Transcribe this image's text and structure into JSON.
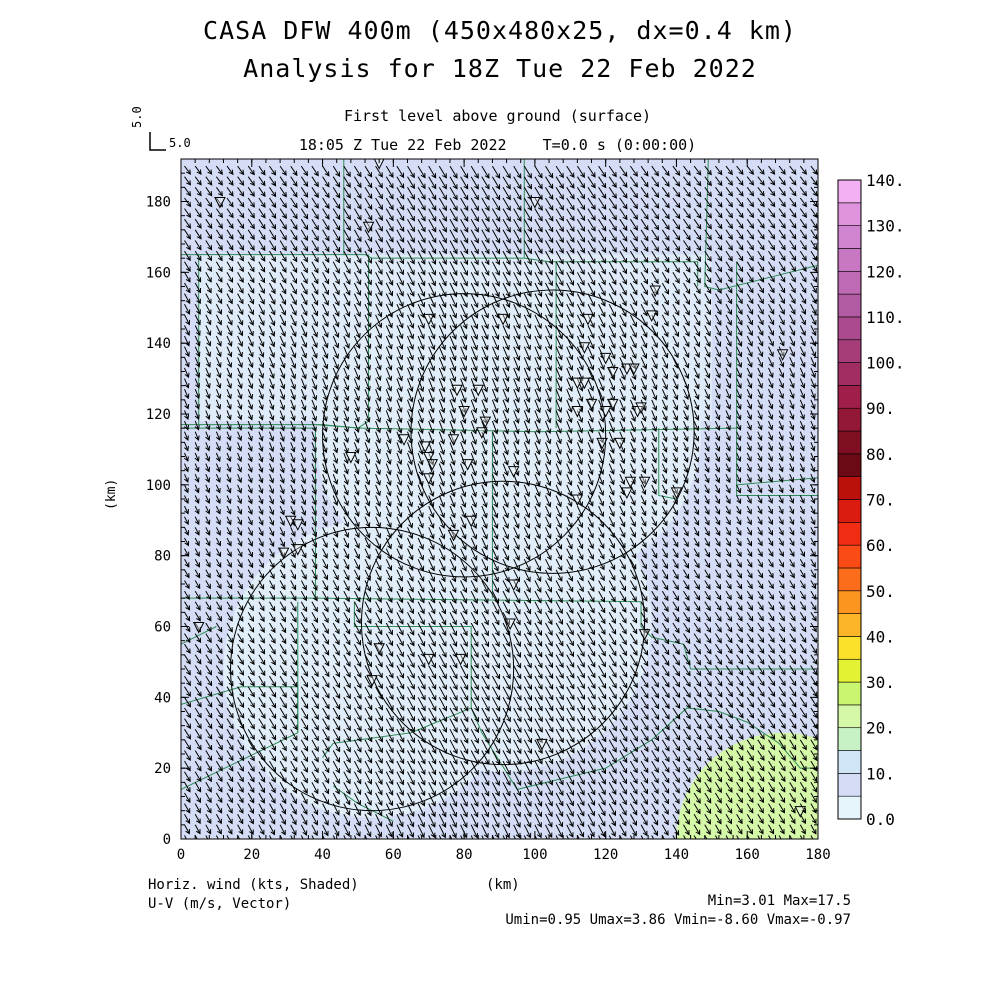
{
  "chart_data": {
    "type": "vector-field",
    "title_line1": "CASA DFW 400m (450x480x25, dx=0.4 km)",
    "title_line2": "Analysis for 18Z Tue 22 Feb 2022",
    "subtitle_line1": "First level above ground (surface)",
    "subtitle_line2": "18:05 Z Tue 22 Feb 2022    T=0.0 s (0:00:00)",
    "xlabel": "(km)",
    "ylabel": "(km)",
    "xlim": [
      0,
      180
    ],
    "ylim": [
      0,
      192
    ],
    "xticks": [
      0,
      20,
      40,
      60,
      80,
      100,
      120,
      140,
      160,
      180
    ],
    "xtick_labels": [
      "0",
      "20",
      "40",
      "60",
      "80",
      "100",
      "120",
      "140",
      "160",
      "180"
    ],
    "yticks": [
      0,
      20,
      40,
      60,
      80,
      100,
      120,
      140,
      160,
      180
    ],
    "ytick_labels": [
      "0",
      "20",
      "40",
      "60",
      "80",
      "100",
      "120",
      "140",
      "160",
      "180"
    ],
    "vector_reference": {
      "u_label": "5.0",
      "v_label": "5.0"
    },
    "colorbar": {
      "levels": [
        0,
        5,
        10,
        15,
        20,
        25,
        30,
        35,
        40,
        45,
        50,
        55,
        60,
        65,
        70,
        75,
        80,
        85,
        90,
        95,
        100,
        105,
        110,
        115,
        120,
        125,
        130,
        135,
        140
      ],
      "tick_labels": [
        "0.0",
        "10.",
        "20.",
        "30.",
        "40.",
        "50.",
        "60.",
        "70.",
        "80.",
        "90.",
        "100.",
        "110.",
        "120.",
        "130.",
        "140."
      ],
      "colors": [
        "#e6f4fb",
        "#d4ddf5",
        "#d0e6f6",
        "#c6f2c6",
        "#d5f7a8",
        "#c9f570",
        "#e3f232",
        "#fbe12a",
        "#fcb526",
        "#fb9420",
        "#fb6d1a",
        "#fa4a15",
        "#f22c12",
        "#dc1b10",
        "#bc100c",
        "#6b0a14",
        "#7e0f23",
        "#931836",
        "#9f1f4a",
        "#a12e63",
        "#a63c7a",
        "#ab4a8e",
        "#b15ba2",
        "#bf6ab5",
        "#c877c3",
        "#d184d0",
        "#de95de",
        "#f3b1f3"
      ]
    },
    "shading": {
      "field": "Horiz. wind (kts)",
      "background_color": "#d4ddf5",
      "light_region_color": "#e6f4fb",
      "green_region_color": "#d5f7a8",
      "green_region": {
        "center": [
          170,
          0
        ],
        "radius": 30
      }
    },
    "vectors": {
      "field": "U-V (m/s)",
      "spacing_km": 3,
      "u_range": [
        0.95,
        3.86
      ],
      "v_range": [
        -8.6,
        -0.97
      ]
    },
    "range_rings": [
      {
        "center": [
          80,
          114
        ],
        "radius": 40
      },
      {
        "center": [
          105,
          115
        ],
        "radius": 40
      },
      {
        "center": [
          54,
          48
        ],
        "radius": 40
      },
      {
        "center": [
          91,
          61
        ],
        "radius": 40
      }
    ],
    "stations": [
      [
        56,
        191
      ],
      [
        53,
        173
      ],
      [
        11,
        180
      ],
      [
        100,
        180
      ],
      [
        134,
        155
      ],
      [
        133,
        148
      ],
      [
        70,
        147
      ],
      [
        91,
        147
      ],
      [
        115,
        147
      ],
      [
        114,
        139
      ],
      [
        120,
        136
      ],
      [
        122,
        132
      ],
      [
        126,
        133
      ],
      [
        128,
        133
      ],
      [
        112,
        129
      ],
      [
        114,
        129
      ],
      [
        116,
        123
      ],
      [
        112,
        121
      ],
      [
        120,
        121
      ],
      [
        122,
        123
      ],
      [
        129,
        121
      ],
      [
        130,
        122
      ],
      [
        170,
        137
      ],
      [
        78,
        127
      ],
      [
        84,
        127
      ],
      [
        80,
        121
      ],
      [
        86,
        118
      ],
      [
        85,
        115
      ],
      [
        77,
        113
      ],
      [
        63,
        113
      ],
      [
        69,
        111
      ],
      [
        70,
        108
      ],
      [
        71,
        106
      ],
      [
        70,
        102
      ],
      [
        81,
        106
      ],
      [
        94,
        104
      ],
      [
        48,
        108
      ],
      [
        119,
        112
      ],
      [
        124,
        112
      ],
      [
        127,
        101
      ],
      [
        131,
        101
      ],
      [
        126,
        98
      ],
      [
        140,
        98
      ],
      [
        112,
        96
      ],
      [
        31,
        90
      ],
      [
        33,
        89
      ],
      [
        29,
        81
      ],
      [
        33,
        82
      ],
      [
        77,
        86
      ],
      [
        82,
        90
      ],
      [
        94,
        72
      ],
      [
        5,
        60
      ],
      [
        93,
        61
      ],
      [
        131,
        58
      ],
      [
        56,
        54
      ],
      [
        70,
        51
      ],
      [
        79,
        51
      ],
      [
        54,
        45
      ],
      [
        102,
        27
      ],
      [
        175,
        8
      ]
    ],
    "boundaries": [
      [
        [
          0,
          165
        ],
        [
          52,
          165
        ],
        [
          54,
          164
        ],
        [
          97,
          164
        ],
        [
          104,
          163
        ],
        [
          146,
          163
        ],
        [
          146,
          156
        ]
      ],
      [
        [
          5,
          165
        ],
        [
          5,
          117
        ]
      ],
      [
        [
          53,
          165
        ],
        [
          53,
          118
        ],
        [
          50,
          116
        ],
        [
          40,
          117
        ],
        [
          0,
          117
        ]
      ],
      [
        [
          0,
          116
        ],
        [
          38,
          116
        ],
        [
          38,
          68
        ],
        [
          0,
          68
        ]
      ],
      [
        [
          38,
          117
        ],
        [
          51,
          116
        ],
        [
          101,
          115
        ],
        [
          157,
          116
        ]
      ],
      [
        [
          38,
          68
        ],
        [
          130,
          67
        ]
      ],
      [
        [
          46,
          192
        ],
        [
          46,
          165
        ]
      ],
      [
        [
          97,
          192
        ],
        [
          97,
          164
        ]
      ],
      [
        [
          106,
          163
        ],
        [
          106,
          116
        ]
      ],
      [
        [
          149,
          192
        ],
        [
          148,
          156
        ],
        [
          152,
          155
        ],
        [
          180,
          162
        ]
      ],
      [
        [
          157,
          163
        ],
        [
          157,
          97
        ],
        [
          180,
          97
        ]
      ],
      [
        [
          157,
          100
        ],
        [
          180,
          102
        ],
        [
          180,
          0
        ]
      ],
      [
        [
          88,
          115
        ],
        [
          88,
          68
        ]
      ],
      [
        [
          135,
          116
        ],
        [
          135,
          97
        ],
        [
          140,
          96
        ]
      ],
      [
        [
          130,
          67
        ],
        [
          130,
          60
        ],
        [
          133,
          57
        ],
        [
          142,
          55
        ],
        [
          144,
          48
        ],
        [
          180,
          48
        ]
      ],
      [
        [
          0,
          38
        ],
        [
          17,
          43
        ],
        [
          33,
          43
        ],
        [
          33,
          30
        ],
        [
          0,
          14
        ]
      ],
      [
        [
          33,
          67
        ],
        [
          33,
          30
        ]
      ],
      [
        [
          49,
          67
        ],
        [
          49,
          60
        ],
        [
          82,
          60
        ],
        [
          82,
          37
        ],
        [
          65,
          30
        ],
        [
          43,
          27
        ],
        [
          40,
          23
        ]
      ],
      [
        [
          82,
          37
        ],
        [
          85,
          30
        ],
        [
          95,
          14
        ],
        [
          120,
          20
        ],
        [
          133,
          28
        ],
        [
          143,
          37
        ],
        [
          152,
          36
        ],
        [
          160,
          33
        ],
        [
          169,
          27
        ],
        [
          175,
          20
        ],
        [
          180,
          20
        ]
      ],
      [
        [
          0,
          55
        ],
        [
          10,
          60
        ]
      ],
      [
        [
          43,
          15
        ],
        [
          50,
          10
        ],
        [
          60,
          5
        ]
      ]
    ],
    "stats": {
      "min_label": "Min=3.01",
      "max_label": "Max=17.5",
      "umin_label": "Umin=0.95",
      "umax_label": "Umax=3.86",
      "vmin_label": "Vmin=-8.60",
      "vmax_label": "Vmax=-0.97"
    },
    "footer_left_line1": "Horiz. wind (kts, Shaded)",
    "footer_left_line2": "U-V (m/s, Vector)"
  }
}
